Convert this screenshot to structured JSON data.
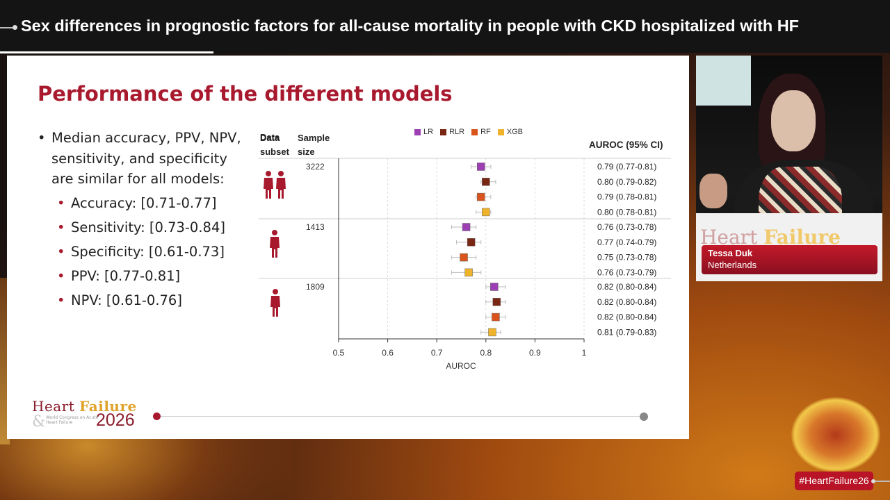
{
  "header": {
    "title": "Sex differences in prognostic factors for all-cause mortality in people with CKD hospitalized with HF"
  },
  "slide": {
    "title": "Performance of the different models",
    "bullet_main": "Median accuracy, PPV, NPV, sensitivity, and specificity are similar for all models:",
    "sub_bullets": [
      "Accuracy: [0.71-0.77]",
      "Sensitivity: [0.73-0.84]",
      "Specificity: [0.61-0.73]",
      "PPV: [0.77-0.81]",
      "NPV: [0.61-0.76]"
    ]
  },
  "chart_data": {
    "type": "scatter",
    "xlabel": "AUROC",
    "xlim": [
      0.5,
      1
    ],
    "x_ticks": [
      "0.5",
      "0.6",
      "0.7",
      "0.8",
      "0.9",
      "1"
    ],
    "col_header_subset": "Data\nsubset",
    "col_header_size": "Sample\nsize",
    "col_header_auroc": "AUROC (95% CI)",
    "legend": [
      "LR",
      "RLR",
      "RF",
      "XGB"
    ],
    "colors": {
      "LR": "#9b3fb3",
      "RLR": "#7a2614",
      "RF": "#d9541c",
      "XGB": "#efb22b"
    },
    "groups": [
      {
        "subset_icon": "male-female-icon",
        "sample_size": "3222",
        "rows": [
          {
            "model": "LR",
            "value": 0.79,
            "lo": 0.77,
            "hi": 0.81,
            "label": "0.79 (0.77-0.81)"
          },
          {
            "model": "RLR",
            "value": 0.8,
            "lo": 0.79,
            "hi": 0.82,
            "label": "0.80 (0.79-0.82)"
          },
          {
            "model": "RF",
            "value": 0.79,
            "lo": 0.78,
            "hi": 0.81,
            "label": "0.79 (0.78-0.81)"
          },
          {
            "model": "XGB",
            "value": 0.8,
            "lo": 0.78,
            "hi": 0.81,
            "label": "0.80 (0.78-0.81)"
          }
        ]
      },
      {
        "subset_icon": "female-icon",
        "sample_size": "1413",
        "rows": [
          {
            "model": "LR",
            "value": 0.76,
            "lo": 0.73,
            "hi": 0.78,
            "label": "0.76 (0.73-0.78)"
          },
          {
            "model": "RLR",
            "value": 0.77,
            "lo": 0.74,
            "hi": 0.79,
            "label": "0.77 (0.74-0.79)"
          },
          {
            "model": "RF",
            "value": 0.755,
            "lo": 0.73,
            "hi": 0.78,
            "label": "0.75 (0.73-0.78)"
          },
          {
            "model": "XGB",
            "value": 0.765,
            "lo": 0.73,
            "hi": 0.79,
            "label": "0.76 (0.73-0.79)"
          }
        ]
      },
      {
        "subset_icon": "male-icon",
        "sample_size": "1809",
        "rows": [
          {
            "model": "LR",
            "value": 0.817,
            "lo": 0.8,
            "hi": 0.84,
            "label": "0.82 (0.80-0.84)"
          },
          {
            "model": "RLR",
            "value": 0.822,
            "lo": 0.8,
            "hi": 0.84,
            "label": "0.82 (0.80-0.84)"
          },
          {
            "model": "RF",
            "value": 0.82,
            "lo": 0.8,
            "hi": 0.84,
            "label": "0.82 (0.80-0.84)"
          },
          {
            "model": "XGB",
            "value": 0.813,
            "lo": 0.79,
            "hi": 0.83,
            "label": "0.81 (0.79-0.83)"
          }
        ]
      }
    ]
  },
  "footer": {
    "logo_part1": "Heart ",
    "logo_part2": "Failure",
    "logo_sub": "World Congress on Acute Heart Failure",
    "logo_year": "2026",
    "logo_amp": "&",
    "accent": "#a8192e"
  },
  "speaker": {
    "name": "Tessa Duk",
    "country": "Netherlands",
    "banner_part1": "Heart ",
    "banner_part2": "Failure"
  },
  "hashtag": "#HeartFailure26"
}
